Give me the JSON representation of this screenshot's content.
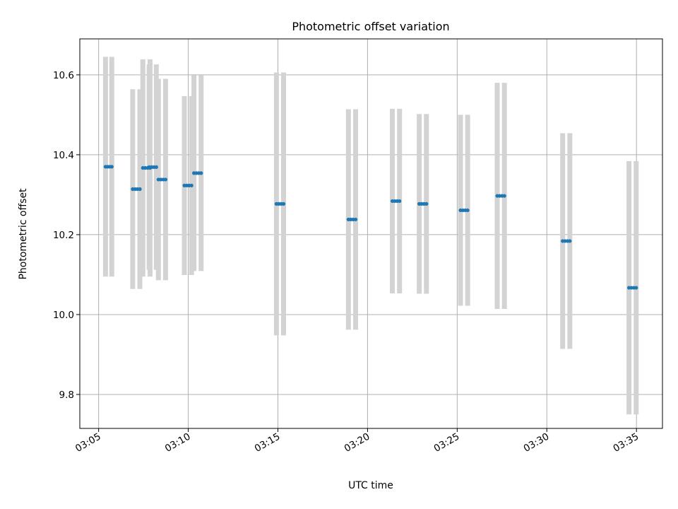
{
  "chart_data": {
    "type": "scatter",
    "title": "Photometric offset variation",
    "xlabel": "UTC time",
    "ylabel": "Photometric offset",
    "xticks": [
      "03:05",
      "03:10",
      "03:15",
      "03:20",
      "03:25",
      "03:30",
      "03:35"
    ],
    "xtick_minutes": [
      5,
      10,
      15,
      20,
      25,
      30,
      35
    ],
    "xlim_minutes": [
      3.95,
      36.45
    ],
    "xunit": "minutes after 03:00 UTC",
    "yticks": [
      "9.8",
      "10.0",
      "10.2",
      "10.4",
      "10.6"
    ],
    "ytick_values": [
      9.8,
      10.0,
      10.2,
      10.4,
      10.6
    ],
    "ylim": [
      9.715,
      10.69
    ],
    "grid": true,
    "marker_color": "#1f77b4",
    "errorbar_color": "#d3d3d3",
    "series": [
      {
        "points": [
          {
            "t0": "03:05:23",
            "t1": "03:05:44",
            "y": 10.37,
            "err": 0.275
          },
          {
            "t0": "03:06:54",
            "t1": "03:07:18",
            "y": 10.314,
            "err": 0.25
          },
          {
            "t0": "03:07:28",
            "t1": "03:07:52",
            "y": 10.367,
            "err": 0.272
          },
          {
            "t0": "03:07:49",
            "t1": "03:08:13",
            "y": 10.369,
            "err": 0.257
          },
          {
            "t0": "03:08:20",
            "t1": "03:08:44",
            "y": 10.338,
            "err": 0.252
          },
          {
            "t0": "03:09:47",
            "t1": "03:10:11",
            "y": 10.323,
            "err": 0.224
          },
          {
            "t0": "03:10:19",
            "t1": "03:10:43",
            "y": 10.354,
            "err": 0.245
          },
          {
            "t0": "03:14:55",
            "t1": "03:15:19",
            "y": 10.277,
            "err": 0.329
          },
          {
            "t0": "03:18:56",
            "t1": "03:19:20",
            "y": 10.238,
            "err": 0.276
          },
          {
            "t0": "03:21:23",
            "t1": "03:21:47",
            "y": 10.284,
            "err": 0.231
          },
          {
            "t0": "03:22:53",
            "t1": "03:23:17",
            "y": 10.277,
            "err": 0.225
          },
          {
            "t0": "03:25:11",
            "t1": "03:25:35",
            "y": 10.261,
            "err": 0.239
          },
          {
            "t0": "03:27:14",
            "t1": "03:27:38",
            "y": 10.297,
            "err": 0.283
          },
          {
            "t0": "03:30:53",
            "t1": "03:31:17",
            "y": 10.184,
            "err": 0.27
          },
          {
            "t0": "03:34:35",
            "t1": "03:34:59",
            "y": 10.067,
            "err": 0.317
          }
        ]
      }
    ]
  }
}
